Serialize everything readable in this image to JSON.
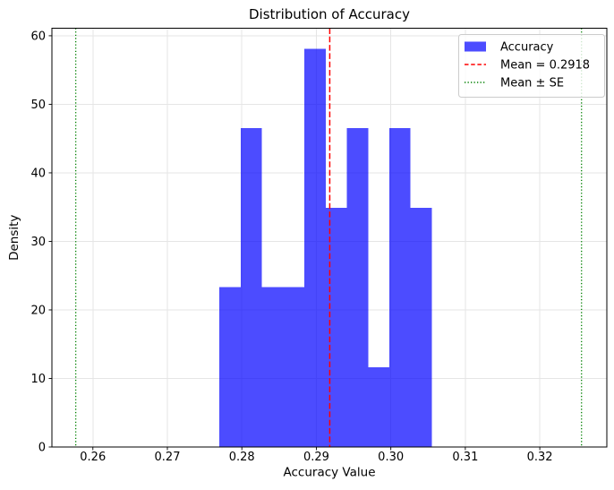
{
  "chart_data": {
    "type": "bar",
    "subtype": "histogram-density",
    "title": "Distribution of Accuracy",
    "xlabel": "Accuracy Value",
    "ylabel": "Density",
    "xlim": [
      0.2545,
      0.329
    ],
    "ylim": [
      0,
      61.1
    ],
    "grid": true,
    "xticks": {
      "values": [
        0.26,
        0.27,
        0.28,
        0.29,
        0.3,
        0.31,
        0.32
      ],
      "labels": [
        "0.26",
        "0.27",
        "0.28",
        "0.29",
        "0.30",
        "0.31",
        "0.32"
      ]
    },
    "yticks": {
      "values": [
        0,
        10,
        20,
        30,
        40,
        50,
        60
      ],
      "labels": [
        "0",
        "10",
        "20",
        "30",
        "40",
        "50",
        "60"
      ]
    },
    "histogram": {
      "label": "Accuracy",
      "bin_start": 0.277,
      "bin_width": 0.00285,
      "bin_edges": [
        0.277,
        0.27985,
        0.2827,
        0.28555,
        0.2884,
        0.29125,
        0.2941,
        0.29695,
        0.2998,
        0.30265,
        0.3055
      ],
      "densities": [
        23.3,
        46.5,
        23.3,
        23.3,
        58.1,
        34.9,
        46.5,
        11.6,
        46.5,
        34.9
      ],
      "color": "#0000FF",
      "opacity": 0.7
    },
    "mean_line": {
      "label": "Mean = 0.2918",
      "value": 0.2918,
      "color": "#FF0000",
      "style": "dashed"
    },
    "se_lines": {
      "label": "Mean ± SE",
      "lower": 0.2577,
      "upper": 0.3256,
      "color": "#008000",
      "style": "dotted"
    },
    "legend": {
      "position": "upper right",
      "entries": [
        {
          "label": "Accuracy",
          "marker": "patch",
          "color": "#0000FF",
          "opacity": 0.7
        },
        {
          "label": "Mean = 0.2918",
          "marker": "dashed-line",
          "color": "#FF0000"
        },
        {
          "label": "Mean ± SE",
          "marker": "dotted-line",
          "color": "#008000"
        }
      ]
    },
    "colors": {
      "background": "#FFFFFF",
      "grid": "#E5E5E5",
      "spine": "#000000",
      "text": "#000000",
      "legend_border": "#CCCCCC"
    }
  }
}
